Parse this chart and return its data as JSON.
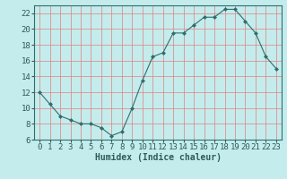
{
  "x": [
    0,
    1,
    2,
    3,
    4,
    5,
    6,
    7,
    8,
    9,
    10,
    11,
    12,
    13,
    14,
    15,
    16,
    17,
    18,
    19,
    20,
    21,
    22,
    23
  ],
  "y": [
    12,
    10.5,
    9,
    8.5,
    8,
    8,
    7.5,
    6.5,
    7,
    10,
    13.5,
    16.5,
    17,
    19.5,
    19.5,
    20.5,
    21.5,
    21.5,
    22.5,
    22.5,
    21,
    19.5,
    16.5,
    15
  ],
  "line_color": "#2d6e6e",
  "marker": "D",
  "marker_size": 2,
  "bg_color": "#c5ecec",
  "grid_color": "#e08080",
  "xlabel": "Humidex (Indice chaleur)",
  "ylabel": "",
  "xlim": [
    -0.5,
    23.5
  ],
  "ylim": [
    6,
    23
  ],
  "yticks": [
    6,
    8,
    10,
    12,
    14,
    16,
    18,
    20,
    22
  ],
  "xticks": [
    0,
    1,
    2,
    3,
    4,
    5,
    6,
    7,
    8,
    9,
    10,
    11,
    12,
    13,
    14,
    15,
    16,
    17,
    18,
    19,
    20,
    21,
    22,
    23
  ],
  "xlabel_fontsize": 7,
  "tick_fontsize": 6.5,
  "tick_color": "#2d5a5a"
}
